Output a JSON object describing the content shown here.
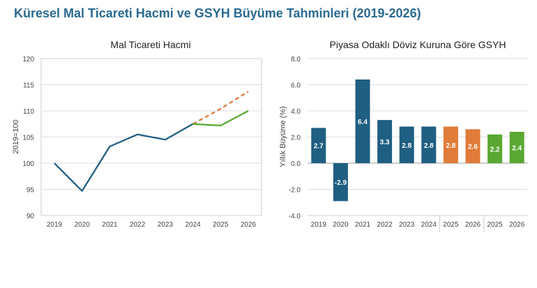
{
  "page": {
    "title": "Küresel Mal Ticareti Hacmi ve GSYH Büyüme Tahminleri (2019-2026)"
  },
  "colors": {
    "title": "#2a6a91",
    "navy": "#1f5f82",
    "orange": "#e07b39",
    "green": "#5aa832",
    "grid": "#dddddd",
    "frame": "#cccccc"
  },
  "chart_data": [
    {
      "type": "line",
      "title": "Mal Ticareti Hacmi",
      "xlabel": "",
      "ylabel": "2019=100",
      "ylim": [
        90,
        120
      ],
      "yticks": [
        90,
        95,
        100,
        105,
        110,
        115,
        120
      ],
      "x": [
        "2019",
        "2020",
        "2021",
        "2022",
        "2023",
        "2024",
        "2025",
        "2026"
      ],
      "grid": true,
      "series": [
        {
          "values": [
            100,
            94.7,
            103.2,
            105.5,
            104.5,
            107.5,
            null,
            null
          ],
          "color": "#1f5f82",
          "style": "solid"
        },
        {
          "values": [
            null,
            null,
            null,
            null,
            null,
            107.5,
            110.4,
            113.7
          ],
          "color": "#e07b39",
          "style": "dashed"
        },
        {
          "values": [
            null,
            null,
            null,
            null,
            null,
            107.5,
            107.2,
            110.0
          ],
          "color": "#5aa832",
          "style": "solid"
        }
      ]
    },
    {
      "type": "bar",
      "title": "Piyasa Odaklı Döviz Kuruna Göre GSYH",
      "xlabel": "",
      "ylabel": "Yıllık Büyüme (%)",
      "ylim": [
        -4,
        8
      ],
      "yticks": [
        "-4.0",
        "-2.0",
        "0.0",
        "2.0",
        "4.0",
        "6.0",
        "8.0"
      ],
      "categories": [
        "2019",
        "2020",
        "2021",
        "2022",
        "2023",
        "2024",
        "2025",
        "2026",
        "2025",
        "2026"
      ],
      "values": [
        2.7,
        -2.9,
        6.4,
        3.3,
        2.8,
        2.8,
        2.8,
        2.6,
        2.2,
        2.4
      ],
      "labels": [
        "2.7",
        "-2.9",
        "6.4",
        "3.3",
        "2.8",
        "2.8",
        "2.8",
        "2.6",
        "2.2",
        "2.4"
      ],
      "bar_colors": [
        "#1f5f82",
        "#1f5f82",
        "#1f5f82",
        "#1f5f82",
        "#1f5f82",
        "#1f5f82",
        "#e07b39",
        "#e07b39",
        "#5aa832",
        "#5aa832"
      ],
      "grid": true
    }
  ]
}
